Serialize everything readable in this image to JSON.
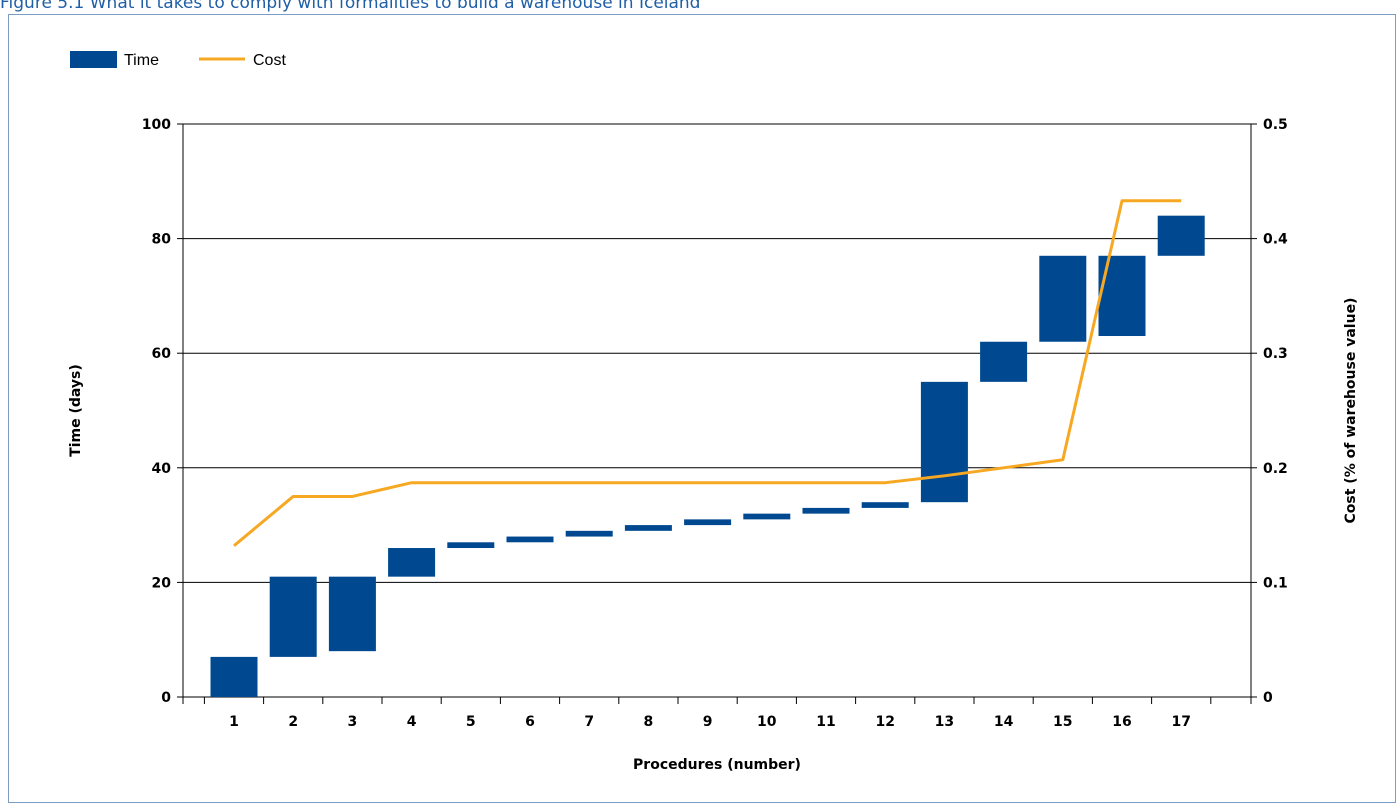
{
  "figure_title": "Figure 5.1 What it takes to comply with formalities to build a warehouse in Iceland",
  "chart_data": {
    "type": "bar",
    "legend_position": "top-left",
    "grid": true,
    "xlabel": "Procedures (number)",
    "ylabel": "Time (days)",
    "ylabel_right": "Cost (% of warehouse value)",
    "ylim": [
      0,
      100
    ],
    "ylim_right": [
      0,
      0.5
    ],
    "yticks": [
      "0",
      "20",
      "40",
      "60",
      "80",
      "100"
    ],
    "yticks_right": [
      "0",
      "0.1",
      "0.2",
      "0.3",
      "0.4",
      "0.5"
    ],
    "categories": [
      "1",
      "2",
      "3",
      "4",
      "5",
      "6",
      "7",
      "8",
      "9",
      "10",
      "11",
      "12",
      "13",
      "14",
      "15",
      "16",
      "17"
    ],
    "series": [
      {
        "name": "Time",
        "type": "floating-bar",
        "color": "#004990",
        "ranges": [
          [
            0,
            7
          ],
          [
            7,
            21
          ],
          [
            8,
            21
          ],
          [
            21,
            26
          ],
          [
            26,
            27
          ],
          [
            27,
            28
          ],
          [
            28,
            29
          ],
          [
            29,
            30
          ],
          [
            30,
            31
          ],
          [
            31,
            32
          ],
          [
            32,
            33
          ],
          [
            33,
            34
          ],
          [
            34,
            55
          ],
          [
            55,
            62
          ],
          [
            62,
            77
          ],
          [
            63,
            77
          ],
          [
            77,
            84
          ]
        ]
      },
      {
        "name": "Cost",
        "type": "line",
        "axis": "right",
        "color": "#f7a823",
        "values": [
          0.132,
          0.175,
          0.175,
          0.187,
          0.187,
          0.187,
          0.187,
          0.187,
          0.187,
          0.187,
          0.187,
          0.187,
          0.193,
          0.2,
          0.207,
          0.433,
          0.433
        ]
      }
    ]
  }
}
